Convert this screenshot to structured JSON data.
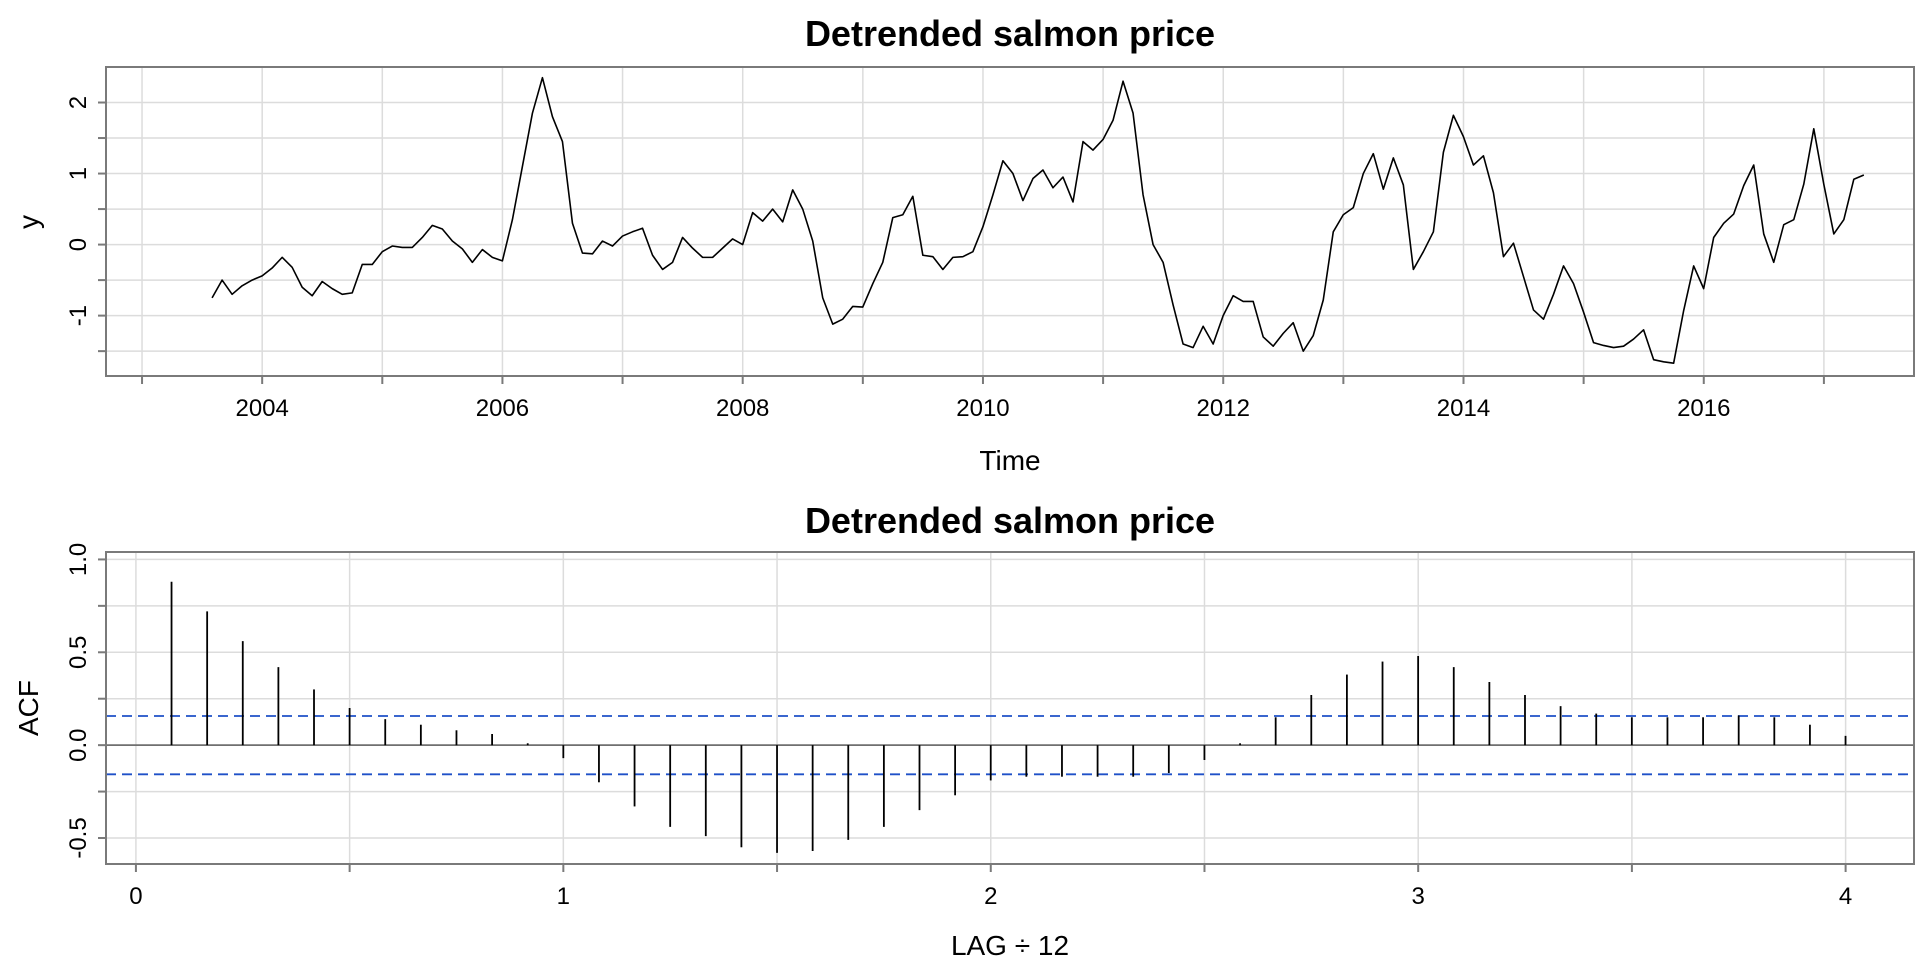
{
  "chart_data": [
    {
      "type": "line",
      "title": "Detrended salmon price",
      "xlabel": "Time",
      "ylabel": "y",
      "xlim": [
        2002.7,
        2017.75
      ],
      "ylim": [
        -1.85,
        2.5
      ],
      "x_ticks": [
        2004,
        2006,
        2008,
        2010,
        2012,
        2014,
        2016
      ],
      "y_ticks": [
        -1,
        0,
        1,
        2
      ],
      "grid": true,
      "series": [
        {
          "x_start": 2003.583,
          "x_step": 0.08333,
          "values": [
            -0.75,
            -0.5,
            -0.7,
            -0.58,
            -0.5,
            -0.44,
            -0.33,
            -0.18,
            -0.32,
            -0.6,
            -0.72,
            -0.52,
            -0.62,
            -0.7,
            -0.68,
            -0.28,
            -0.28,
            -0.1,
            -0.02,
            -0.04,
            -0.04,
            0.1,
            0.27,
            0.22,
            0.05,
            -0.06,
            -0.25,
            -0.07,
            -0.18,
            -0.23,
            0.35,
            1.1,
            1.85,
            2.35,
            1.8,
            1.45,
            0.3,
            -0.12,
            -0.13,
            0.05,
            -0.02,
            0.12,
            0.18,
            0.23,
            -0.15,
            -0.35,
            -0.25,
            0.1,
            -0.05,
            -0.18,
            -0.18,
            -0.05,
            0.08,
            0.0,
            0.45,
            0.33,
            0.5,
            0.32,
            0.77,
            0.5,
            0.05,
            -0.75,
            -1.12,
            -1.05,
            -0.87,
            -0.88,
            -0.55,
            -0.25,
            0.38,
            0.42,
            0.68,
            -0.15,
            -0.17,
            -0.35,
            -0.18,
            -0.17,
            -0.1,
            0.25,
            0.7,
            1.18,
            1.0,
            0.62,
            0.93,
            1.05,
            0.8,
            0.95,
            0.6,
            1.45,
            1.33,
            1.48,
            1.75,
            2.3,
            1.85,
            0.7,
            0.0,
            -0.25,
            -0.85,
            -1.4,
            -1.45,
            -1.15,
            -1.4,
            -1.0,
            -0.72,
            -0.8,
            -0.8,
            -1.3,
            -1.43,
            -1.25,
            -1.1,
            -1.5,
            -1.28,
            -0.78,
            0.18,
            0.42,
            0.52,
            1.0,
            1.28,
            0.78,
            1.22,
            0.84,
            -0.35,
            -0.1,
            0.18,
            1.3,
            1.82,
            1.52,
            1.12,
            1.25,
            0.73,
            -0.17,
            0.02,
            -0.45,
            -0.92,
            -1.05,
            -0.7,
            -0.3,
            -0.55,
            -0.95,
            -1.38,
            -1.42,
            -1.45,
            -1.43,
            -1.33,
            -1.2,
            -1.62,
            -1.65,
            -1.67,
            -0.93,
            -0.3,
            -0.62,
            0.1,
            0.3,
            0.43,
            0.83,
            1.12,
            0.15,
            -0.25,
            0.28,
            0.35,
            0.85,
            1.63,
            0.85,
            0.15,
            0.35,
            0.92,
            0.98
          ]
        }
      ]
    },
    {
      "type": "bar",
      "title": "Detrended salmon price",
      "xlabel": "LAG ÷ 12",
      "ylabel": "ACF",
      "xlim": [
        -0.07,
        4.16
      ],
      "ylim": [
        -0.64,
        1.04
      ],
      "x_ticks": [
        0,
        1,
        2,
        3,
        4
      ],
      "y_ticks": [
        -0.5,
        0.0,
        0.5,
        1.0
      ],
      "y_tick_labels": [
        "-0.5",
        "0.0",
        "0.5",
        "1.0"
      ],
      "grid": true,
      "confidence_band": 0.157,
      "colors": {
        "band": "#1f50c8",
        "bars": "#000000",
        "zero": "#707070"
      },
      "lag_step": 0.08333,
      "values": [
        0.88,
        0.72,
        0.56,
        0.42,
        0.3,
        0.2,
        0.14,
        0.11,
        0.08,
        0.06,
        0.01,
        -0.07,
        -0.2,
        -0.33,
        -0.44,
        -0.49,
        -0.55,
        -0.58,
        -0.57,
        -0.51,
        -0.44,
        -0.35,
        -0.27,
        -0.19,
        -0.17,
        -0.17,
        -0.17,
        -0.17,
        -0.15,
        -0.08,
        0.01,
        0.15,
        0.27,
        0.38,
        0.45,
        0.48,
        0.42,
        0.34,
        0.27,
        0.21,
        0.17,
        0.15,
        0.15,
        0.15,
        0.16,
        0.15,
        0.11,
        0.05
      ]
    }
  ]
}
